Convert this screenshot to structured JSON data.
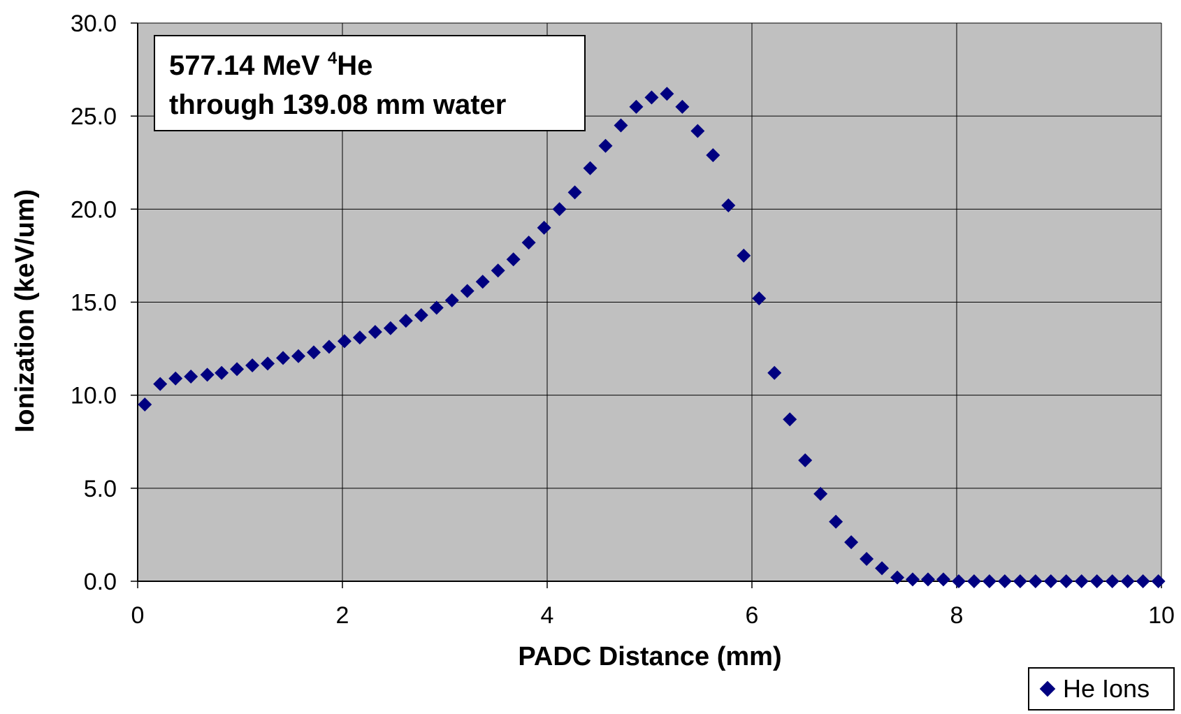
{
  "chart_data": {
    "type": "scatter",
    "title": "",
    "annotation": {
      "line1_prefix": "577.14 MeV ",
      "line1_sup": "4",
      "line1_suffix": "He",
      "line2": "through 139.08 mm water"
    },
    "xlabel": "PADC Distance (mm)",
    "ylabel": "Ionization (keV/um)",
    "xlim": [
      0,
      10
    ],
    "ylim": [
      0,
      30
    ],
    "x_ticks": [
      "0",
      "2",
      "4",
      "6",
      "8",
      "10"
    ],
    "y_ticks": [
      "0.0",
      "5.0",
      "10.0",
      "15.0",
      "20.0",
      "25.0",
      "30.0"
    ],
    "grid": true,
    "legend_position": "bottom-right",
    "colors": {
      "marker": "#000080",
      "plot_background": "#c0c0c0",
      "grid": "#000000"
    },
    "series": [
      {
        "name": "He Ions",
        "marker": "diamond",
        "x": [
          0.07,
          0.22,
          0.37,
          0.52,
          0.68,
          0.82,
          0.97,
          1.12,
          1.27,
          1.42,
          1.57,
          1.72,
          1.87,
          2.02,
          2.17,
          2.32,
          2.47,
          2.62,
          2.77,
          2.92,
          3.07,
          3.22,
          3.37,
          3.52,
          3.67,
          3.82,
          3.97,
          4.12,
          4.27,
          4.42,
          4.57,
          4.72,
          4.87,
          5.02,
          5.17,
          5.32,
          5.47,
          5.62,
          5.77,
          5.92,
          6.07,
          6.22,
          6.37,
          6.52,
          6.67,
          6.82,
          6.97,
          7.12,
          7.27,
          7.42,
          7.57,
          7.72,
          7.87,
          8.02,
          8.17,
          8.32,
          8.47,
          8.62,
          8.77,
          8.92,
          9.07,
          9.22,
          9.37,
          9.52,
          9.67,
          9.82,
          9.97
        ],
        "y": [
          9.5,
          10.6,
          10.9,
          11.0,
          11.1,
          11.2,
          11.4,
          11.6,
          11.7,
          12.0,
          12.1,
          12.3,
          12.6,
          12.9,
          13.1,
          13.4,
          13.6,
          14.0,
          14.3,
          14.7,
          15.1,
          15.6,
          16.1,
          16.7,
          17.3,
          18.2,
          19.0,
          20.0,
          20.9,
          22.2,
          23.4,
          24.5,
          25.5,
          26.0,
          26.2,
          25.5,
          24.2,
          22.9,
          20.2,
          17.5,
          15.2,
          11.2,
          8.7,
          6.5,
          4.7,
          3.2,
          2.1,
          1.2,
          0.7,
          0.2,
          0.1,
          0.1,
          0.1,
          0.0,
          0.0,
          0.0,
          0.0,
          0.0,
          0.0,
          0.0,
          0.0,
          0.0,
          0.0,
          0.0,
          0.0,
          0.0,
          0.0
        ]
      }
    ]
  }
}
